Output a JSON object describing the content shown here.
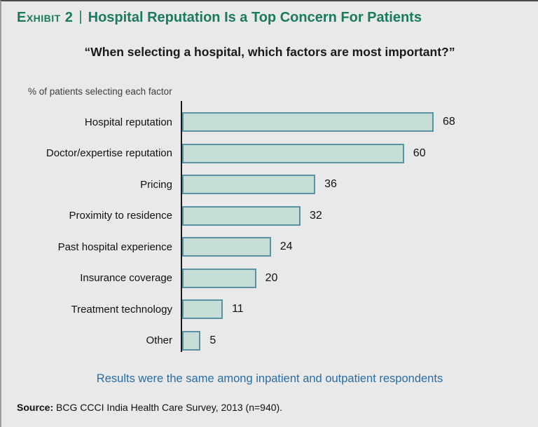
{
  "exhibit": {
    "label": "Exhibit 2",
    "separator": "|",
    "title": "Hospital Reputation Is a Top Concern For Patients"
  },
  "subtitle": "“When selecting a hospital, which factors are most important?”",
  "chart_data": {
    "type": "bar",
    "orientation": "horizontal",
    "title": "When selecting a hospital, which factors are most important?",
    "unit_label": "% of patients selecting each factor",
    "categories": [
      "Hospital reputation",
      "Doctor/expertise reputation",
      "Pricing",
      "Proximity to residence",
      "Past hospital experience",
      "Insurance coverage",
      "Treatment technology",
      "Other"
    ],
    "values": [
      68,
      60,
      36,
      32,
      24,
      20,
      11,
      5
    ],
    "xlim": [
      0,
      72
    ],
    "grid": false,
    "legend": false,
    "bar_fill": "#c6ded7",
    "bar_border": "#5b92a6"
  },
  "note": "Results were the same among inpatient and outpatient respondents",
  "source": {
    "label": "Source:",
    "text": " BCG CCCI India Health Care Survey, 2013 (n=940)."
  },
  "colors": {
    "title_green": "#1a7a5f",
    "note_blue": "#2a6da4",
    "background": "#e9e9e9",
    "axis": "#1a1a1a"
  }
}
